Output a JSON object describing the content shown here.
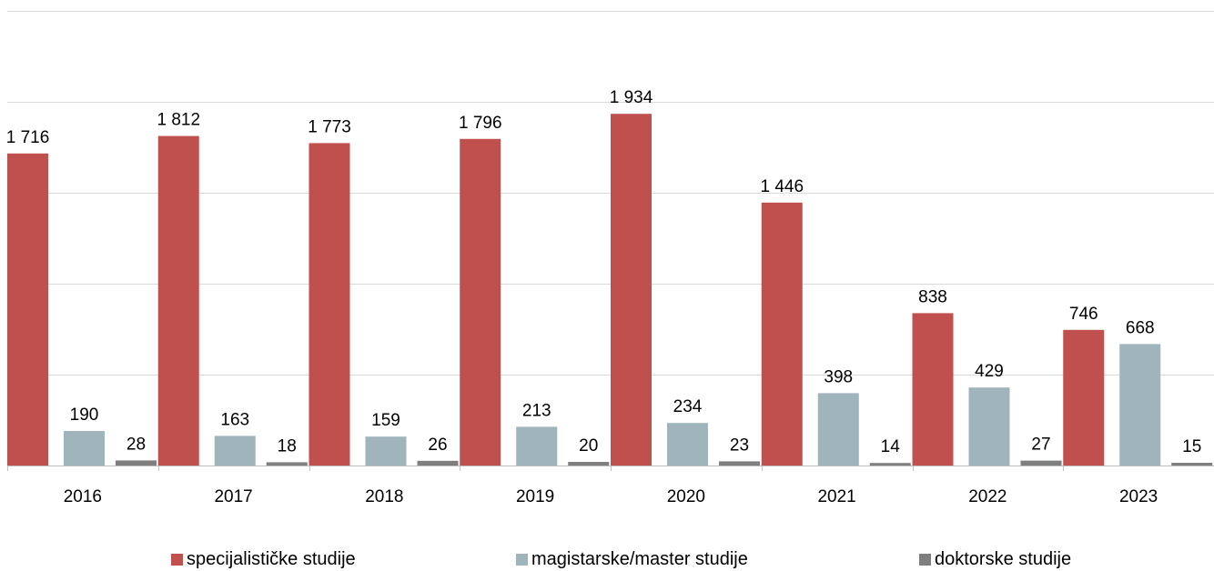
{
  "chart_data": {
    "type": "bar",
    "categories": [
      "2016",
      "2017",
      "2018",
      "2019",
      "2020",
      "2021",
      "2022",
      "2023"
    ],
    "series": [
      {
        "name": "specijalističke studije",
        "color": "#c0504d",
        "values": [
          1716,
          1812,
          1773,
          1796,
          1934,
          1446,
          838,
          746
        ],
        "labels": [
          "1 716",
          "1 812",
          "1 773",
          "1 796",
          "1 934",
          "1 446",
          "838",
          "746"
        ]
      },
      {
        "name": "magistarske/master studije",
        "color": "#a0b4bc",
        "values": [
          190,
          163,
          159,
          213,
          234,
          398,
          429,
          668
        ],
        "labels": [
          "190",
          "163",
          "159",
          "213",
          "234",
          "398",
          "429",
          "668"
        ]
      },
      {
        "name": "doktorske studije",
        "color": "#7f7f7f",
        "values": [
          28,
          18,
          26,
          20,
          23,
          14,
          27,
          15
        ],
        "labels": [
          "28",
          "18",
          "26",
          "20",
          "23",
          "14",
          "27",
          "15"
        ]
      }
    ],
    "ylim": [
      0,
      2500
    ],
    "grid": true,
    "y_tick_labels_shown": false,
    "legend_position": "bottom",
    "gridline_color": "#d9d9d9",
    "axis_color": "#bfbfbf"
  }
}
